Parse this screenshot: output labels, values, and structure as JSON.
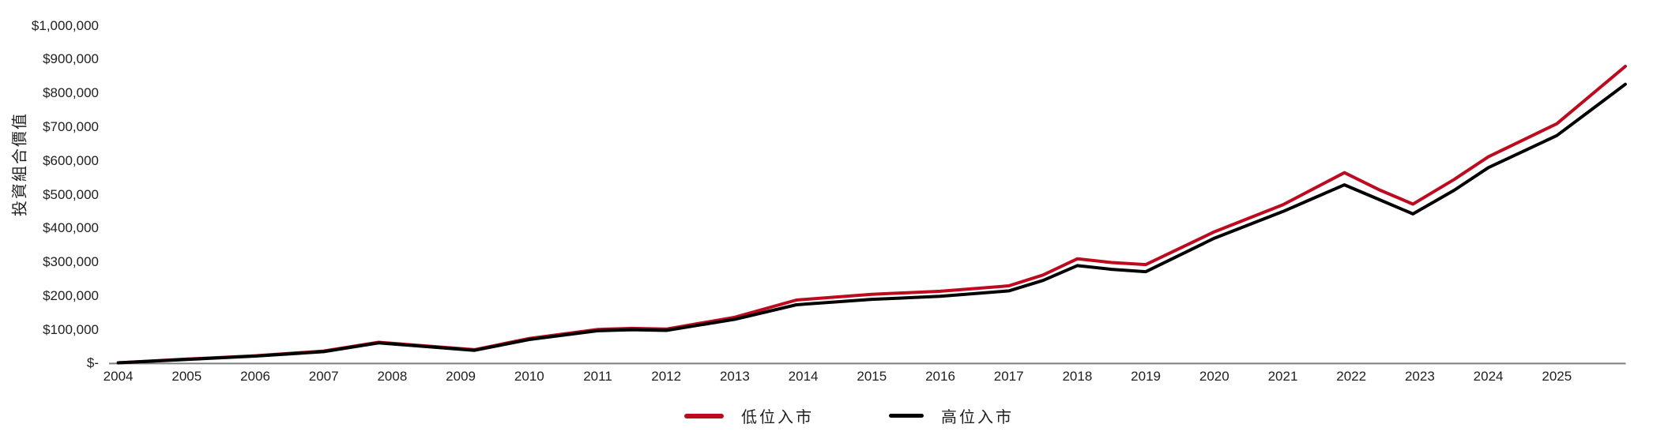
{
  "chart_data": {
    "type": "line",
    "title": "",
    "xlabel": "",
    "ylabel": "投資組合價值",
    "ylim": [
      0,
      1000000
    ],
    "xlim": [
      2004,
      2026
    ],
    "grid": false,
    "legend_position": "bottom",
    "axis_color": "#7f7f7f",
    "text_color": "#1f1f1f",
    "y_tick_values": [
      1000000,
      900000,
      800000,
      700000,
      600000,
      500000,
      400000,
      300000,
      200000,
      100000,
      0
    ],
    "y_tick_labels": [
      "$1,000,000",
      "$900,000",
      "$800,000",
      "$700,000",
      "$600,000",
      "$500,000",
      "$400,000",
      "$300,000",
      "$200,000",
      "$100,000",
      "$-"
    ],
    "x_tick_values": [
      2004,
      2005,
      2006,
      2007,
      2008,
      2009,
      2010,
      2011,
      2012,
      2013,
      2014,
      2015,
      2016,
      2017,
      2018,
      2019,
      2020,
      2021,
      2022,
      2023,
      2024,
      2025
    ],
    "x_tick_labels": [
      "2004",
      "2005",
      "2006",
      "2007",
      "2008",
      "2009",
      "2010",
      "2011",
      "2012",
      "2013",
      "2014",
      "2015",
      "2016",
      "2017",
      "2018",
      "2019",
      "2020",
      "2021",
      "2022",
      "2023",
      "2024",
      "2025"
    ],
    "x": [
      2004.0,
      2005.0,
      2006.0,
      2007.0,
      2007.8,
      2009.2,
      2010.0,
      2011.0,
      2011.5,
      2012.0,
      2013.0,
      2013.9,
      2015.0,
      2016.0,
      2017.0,
      2017.5,
      2018.0,
      2018.5,
      2019.0,
      2020.0,
      2021.0,
      2021.9,
      2022.4,
      2022.9,
      2023.5,
      2024.0,
      2025.0,
      2026.0
    ],
    "series": [
      {
        "name": "低位入市",
        "color": "#be0a1e",
        "values": [
          2000,
          13000,
          23000,
          37000,
          63000,
          41000,
          74000,
          101000,
          104000,
          102000,
          137000,
          188000,
          205000,
          214000,
          230000,
          262000,
          310000,
          299000,
          293000,
          390000,
          470000,
          565000,
          515000,
          472000,
          545000,
          612000,
          710000,
          880000
        ]
      },
      {
        "name": "高位入市",
        "color": "#000000",
        "values": [
          2000,
          12000,
          22000,
          35000,
          61000,
          39000,
          71000,
          97000,
          100000,
          98000,
          131000,
          174000,
          190000,
          199000,
          215000,
          246000,
          290000,
          279000,
          272000,
          371000,
          450000,
          529000,
          486000,
          443000,
          513000,
          580000,
          675000,
          827000
        ]
      }
    ]
  }
}
